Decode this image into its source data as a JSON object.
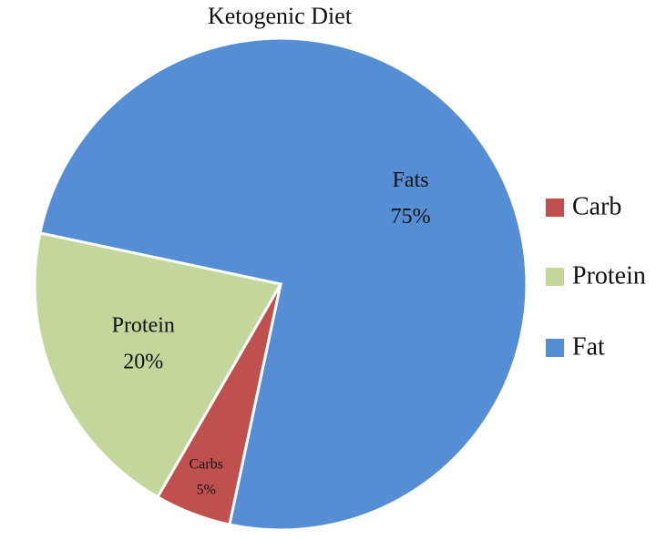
{
  "chart_data": {
    "type": "pie",
    "title": "Ketogenic Diet",
    "slices": [
      {
        "legend_label": "Fat",
        "slice_label": "Fats",
        "value": 75,
        "value_label": "75%",
        "color": "#558ed5"
      },
      {
        "legend_label": "Carb",
        "slice_label": "Carbs",
        "value": 5,
        "value_label": "5%",
        "color": "#c0504d"
      },
      {
        "legend_label": "Protein",
        "slice_label": "Protein",
        "value": 20,
        "value_label": "20%",
        "color": "#c3d69b"
      }
    ],
    "legend": {
      "placement": "right",
      "items": [
        "Carb",
        "Protein",
        "Fat"
      ]
    }
  }
}
